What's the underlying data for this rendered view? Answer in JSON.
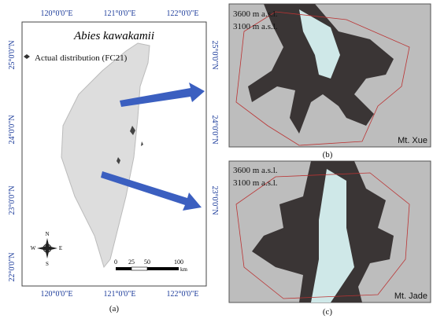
{
  "panel_a": {
    "title": "Abies kawakamii",
    "legend": "Actual distribution (FC21)",
    "lon_top": [
      "120°0'0\"E",
      "121°0'0\"E",
      "122°0'0\"E"
    ],
    "lon_bottom": [
      "120°0'0\"E",
      "121°0'0\"E",
      "122°0'0\"E"
    ],
    "lat_left": [
      "25°0'0\"N",
      "24°0'0\"N",
      "23°0'0\"N",
      "22°0'0\"N"
    ],
    "lat_right": [
      "25°0'0\"N",
      "24°0'0\"N",
      "23°0'0\"N"
    ],
    "compass": {
      "n": "N",
      "s": "S",
      "e": "E",
      "w": "W"
    },
    "scale": [
      "0",
      "25",
      "50",
      "100",
      "km"
    ],
    "caption": "(a)"
  },
  "panel_b": {
    "contour_high": "3600 m a.s.l.",
    "contour_low": "3100 m a.s.l.",
    "peak": "Mt. Xue",
    "caption": "(b)"
  },
  "panel_c": {
    "contour_high": "3600 m a.s.l.",
    "contour_low": "3100 m a.s.l.",
    "peak": "Mt. Jade",
    "caption": "(c)"
  }
}
